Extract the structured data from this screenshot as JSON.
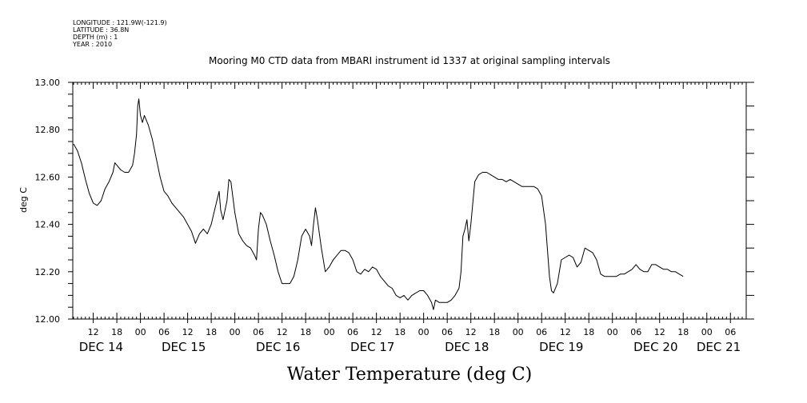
{
  "header": {
    "longitude": "LONGITUDE : 121.9W(-121.9)",
    "latitude": "LATITUDE : 36.8N",
    "depth": "DEPTH (m) : 1",
    "year": "YEAR : 2010"
  },
  "chart_data": {
    "type": "line",
    "title": "Mooring M0 CTD data from MBARI instrument id 1337 at original sampling intervals",
    "ylabel": "deg C",
    "xlabel": "Water Temperature (deg C)",
    "ylim": [
      12.0,
      13.0
    ],
    "yticks": [
      "12.00",
      "12.20",
      "12.40",
      "12.60",
      "12.80",
      "13.00"
    ],
    "xlim_hours": [
      0,
      170
    ],
    "hour_ticks": [
      {
        "t": 5,
        "label": "12"
      },
      {
        "t": 11,
        "label": "18"
      },
      {
        "t": 17,
        "label": "00"
      },
      {
        "t": 23,
        "label": "06"
      },
      {
        "t": 29,
        "label": "12"
      },
      {
        "t": 35,
        "label": "18"
      },
      {
        "t": 41,
        "label": "00"
      },
      {
        "t": 47,
        "label": "06"
      },
      {
        "t": 53,
        "label": "12"
      },
      {
        "t": 59,
        "label": "18"
      },
      {
        "t": 65,
        "label": "00"
      },
      {
        "t": 71,
        "label": "06"
      },
      {
        "t": 77,
        "label": "12"
      },
      {
        "t": 83,
        "label": "18"
      },
      {
        "t": 89,
        "label": "00"
      },
      {
        "t": 95,
        "label": "06"
      },
      {
        "t": 101,
        "label": "12"
      },
      {
        "t": 107,
        "label": "18"
      },
      {
        "t": 113,
        "label": "00"
      },
      {
        "t": 119,
        "label": "06"
      },
      {
        "t": 125,
        "label": "12"
      },
      {
        "t": 131,
        "label": "18"
      },
      {
        "t": 137,
        "label": "00"
      },
      {
        "t": 143,
        "label": "06"
      },
      {
        "t": 149,
        "label": "12"
      },
      {
        "t": 155,
        "label": "18"
      },
      {
        "t": 161,
        "label": "00"
      },
      {
        "t": 167,
        "label": "06"
      }
    ],
    "day_labels": [
      {
        "t": 7,
        "label": "DEC 14"
      },
      {
        "t": 28,
        "label": "DEC 15"
      },
      {
        "t": 52,
        "label": "DEC 16"
      },
      {
        "t": 76,
        "label": "DEC 17"
      },
      {
        "t": 100,
        "label": "DEC 18"
      },
      {
        "t": 124,
        "label": "DEC 19"
      },
      {
        "t": 148,
        "label": "DEC 20"
      },
      {
        "t": 164,
        "label": "DEC 21"
      }
    ],
    "series": [
      {
        "points": [
          [
            0.0,
            12.74
          ],
          [
            1.0,
            12.71
          ],
          [
            2.0,
            12.66
          ],
          [
            3.0,
            12.59
          ],
          [
            4.0,
            12.53
          ],
          [
            5.0,
            12.49
          ],
          [
            6.0,
            12.48
          ],
          [
            7.0,
            12.5
          ],
          [
            8.0,
            12.55
          ],
          [
            9.0,
            12.58
          ],
          [
            10.0,
            12.62
          ],
          [
            10.5,
            12.66
          ],
          [
            11.0,
            12.65
          ],
          [
            12.0,
            12.63
          ],
          [
            13.0,
            12.62
          ],
          [
            14.0,
            12.62
          ],
          [
            15.0,
            12.65
          ],
          [
            15.5,
            12.7
          ],
          [
            16.0,
            12.78
          ],
          [
            16.3,
            12.9
          ],
          [
            16.6,
            12.93
          ],
          [
            17.0,
            12.86
          ],
          [
            17.5,
            12.83
          ],
          [
            18.0,
            12.86
          ],
          [
            19.0,
            12.82
          ],
          [
            20.0,
            12.76
          ],
          [
            21.0,
            12.68
          ],
          [
            22.0,
            12.6
          ],
          [
            23.0,
            12.54
          ],
          [
            24.0,
            12.52
          ],
          [
            25.0,
            12.49
          ],
          [
            26.0,
            12.47
          ],
          [
            27.0,
            12.45
          ],
          [
            28.0,
            12.43
          ],
          [
            29.0,
            12.4
          ],
          [
            30.0,
            12.37
          ],
          [
            31.0,
            12.32
          ],
          [
            32.0,
            12.36
          ],
          [
            33.0,
            12.38
          ],
          [
            34.0,
            12.36
          ],
          [
            35.0,
            12.4
          ],
          [
            36.0,
            12.47
          ],
          [
            37.0,
            12.54
          ],
          [
            37.4,
            12.46
          ],
          [
            38.0,
            12.42
          ],
          [
            39.0,
            12.5
          ],
          [
            39.5,
            12.59
          ],
          [
            40.0,
            12.58
          ],
          [
            41.0,
            12.45
          ],
          [
            42.0,
            12.36
          ],
          [
            43.0,
            12.33
          ],
          [
            44.0,
            12.31
          ],
          [
            45.0,
            12.3
          ],
          [
            46.0,
            12.27
          ],
          [
            46.5,
            12.25
          ],
          [
            47.0,
            12.38
          ],
          [
            47.5,
            12.45
          ],
          [
            48.0,
            12.44
          ],
          [
            49.0,
            12.4
          ],
          [
            50.0,
            12.33
          ],
          [
            51.0,
            12.27
          ],
          [
            52.0,
            12.2
          ],
          [
            53.0,
            12.15
          ],
          [
            54.0,
            12.15
          ],
          [
            55.0,
            12.15
          ],
          [
            56.0,
            12.18
          ],
          [
            57.0,
            12.25
          ],
          [
            58.0,
            12.35
          ],
          [
            59.0,
            12.38
          ],
          [
            60.0,
            12.35
          ],
          [
            60.5,
            12.31
          ],
          [
            61.0,
            12.4
          ],
          [
            61.5,
            12.47
          ],
          [
            62.0,
            12.42
          ],
          [
            63.0,
            12.3
          ],
          [
            64.0,
            12.2
          ],
          [
            65.0,
            12.22
          ],
          [
            66.0,
            12.25
          ],
          [
            67.0,
            12.27
          ],
          [
            68.0,
            12.29
          ],
          [
            69.0,
            12.29
          ],
          [
            70.0,
            12.28
          ],
          [
            71.0,
            12.25
          ],
          [
            72.0,
            12.2
          ],
          [
            73.0,
            12.19
          ],
          [
            74.0,
            12.21
          ],
          [
            75.0,
            12.2
          ],
          [
            76.0,
            12.22
          ],
          [
            77.0,
            12.21
          ],
          [
            78.0,
            12.18
          ],
          [
            79.0,
            12.16
          ],
          [
            80.0,
            12.14
          ],
          [
            81.0,
            12.13
          ],
          [
            82.0,
            12.1
          ],
          [
            83.0,
            12.09
          ],
          [
            84.0,
            12.1
          ],
          [
            85.0,
            12.08
          ],
          [
            86.0,
            12.1
          ],
          [
            87.0,
            12.11
          ],
          [
            88.0,
            12.12
          ],
          [
            89.0,
            12.12
          ],
          [
            90.0,
            12.1
          ],
          [
            91.0,
            12.07
          ],
          [
            91.5,
            12.04
          ],
          [
            92.0,
            12.08
          ],
          [
            93.0,
            12.07
          ],
          [
            94.0,
            12.07
          ],
          [
            95.0,
            12.07
          ],
          [
            96.0,
            12.08
          ],
          [
            97.0,
            12.1
          ],
          [
            98.0,
            12.13
          ],
          [
            98.5,
            12.2
          ],
          [
            99.0,
            12.35
          ],
          [
            99.5,
            12.38
          ],
          [
            100.0,
            12.42
          ],
          [
            100.5,
            12.33
          ],
          [
            101.0,
            12.4
          ],
          [
            102.0,
            12.58
          ],
          [
            103.0,
            12.61
          ],
          [
            104.0,
            12.62
          ],
          [
            105.0,
            12.62
          ],
          [
            106.0,
            12.61
          ],
          [
            107.0,
            12.6
          ],
          [
            108.0,
            12.59
          ],
          [
            109.0,
            12.59
          ],
          [
            110.0,
            12.58
          ],
          [
            111.0,
            12.59
          ],
          [
            112.0,
            12.58
          ],
          [
            113.0,
            12.57
          ],
          [
            114.0,
            12.56
          ],
          [
            115.0,
            12.56
          ],
          [
            116.0,
            12.56
          ],
          [
            117.0,
            12.56
          ],
          [
            118.0,
            12.55
          ],
          [
            119.0,
            12.52
          ],
          [
            120.0,
            12.4
          ],
          [
            121.0,
            12.18
          ],
          [
            121.5,
            12.12
          ],
          [
            122.0,
            12.11
          ],
          [
            123.0,
            12.15
          ],
          [
            124.0,
            12.25
          ],
          [
            125.0,
            12.26
          ],
          [
            126.0,
            12.27
          ],
          [
            127.0,
            12.26
          ],
          [
            128.0,
            12.22
          ],
          [
            129.0,
            12.24
          ],
          [
            130.0,
            12.3
          ],
          [
            131.0,
            12.29
          ],
          [
            132.0,
            12.28
          ],
          [
            133.0,
            12.25
          ],
          [
            134.0,
            12.19
          ],
          [
            135.0,
            12.18
          ],
          [
            136.0,
            12.18
          ],
          [
            137.0,
            12.18
          ],
          [
            138.0,
            12.18
          ],
          [
            139.0,
            12.19
          ],
          [
            140.0,
            12.19
          ],
          [
            141.0,
            12.2
          ],
          [
            142.0,
            12.21
          ],
          [
            143.0,
            12.23
          ],
          [
            144.0,
            12.21
          ],
          [
            145.0,
            12.2
          ],
          [
            146.0,
            12.2
          ],
          [
            147.0,
            12.23
          ],
          [
            148.0,
            12.23
          ],
          [
            149.0,
            12.22
          ],
          [
            150.0,
            12.21
          ],
          [
            151.0,
            12.21
          ],
          [
            152.0,
            12.2
          ],
          [
            153.0,
            12.2
          ],
          [
            154.0,
            12.19
          ],
          [
            155.0,
            12.18
          ]
        ]
      }
    ]
  }
}
